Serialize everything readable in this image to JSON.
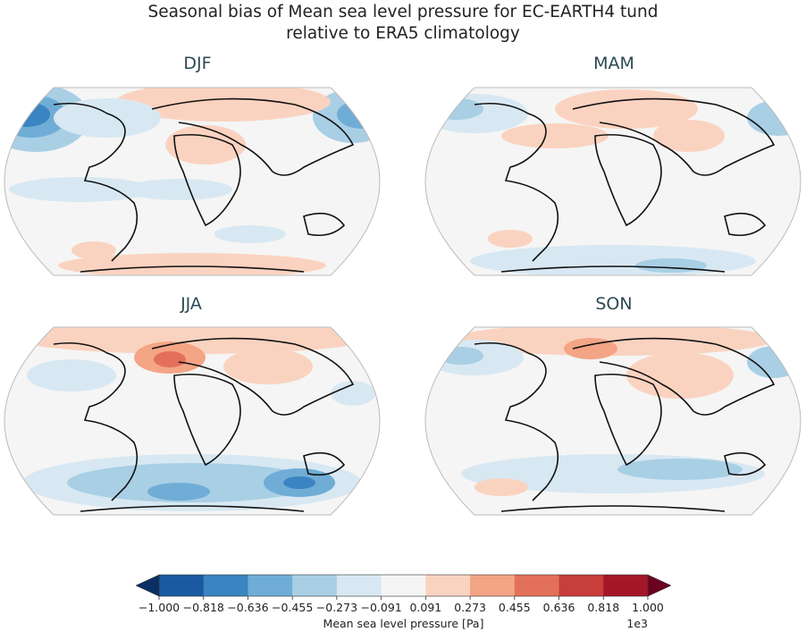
{
  "title_line1": "Seasonal bias of Mean sea level pressure for EC-EARTH4 tund",
  "title_line2": "relative to ERA5 climatology",
  "chart_data": {
    "type": "heatmap",
    "title": "Seasonal bias of Mean sea level pressure for EC-EARTH4 tund relative to ERA5 climatology",
    "panels": [
      {
        "name": "DJF"
      },
      {
        "name": "MAM"
      },
      {
        "name": "JJA"
      },
      {
        "name": "SON"
      }
    ],
    "colorbar": {
      "label": "Mean sea level pressure [Pa]",
      "multiplier": "1e3",
      "ticks": [
        "−1.000",
        "−0.818",
        "−0.636",
        "−0.455",
        "−0.273",
        "−0.091",
        "0.091",
        "0.273",
        "0.455",
        "0.636",
        "0.818",
        "1.000"
      ],
      "levels": [
        -1.0,
        -0.818,
        -0.636,
        -0.455,
        -0.273,
        -0.091,
        0.091,
        0.273,
        0.455,
        0.636,
        0.818,
        1.0
      ],
      "colors": [
        "#1a5aa0",
        "#3a84c1",
        "#6fadd6",
        "#a9cfe5",
        "#d8e8f2",
        "#f5f5f5",
        "#fad3c0",
        "#f3a585",
        "#e3705a",
        "#c73e3a",
        "#a51728"
      ],
      "under_color": "#0c2f63",
      "over_color": "#6a0220",
      "extend": "both"
    }
  }
}
